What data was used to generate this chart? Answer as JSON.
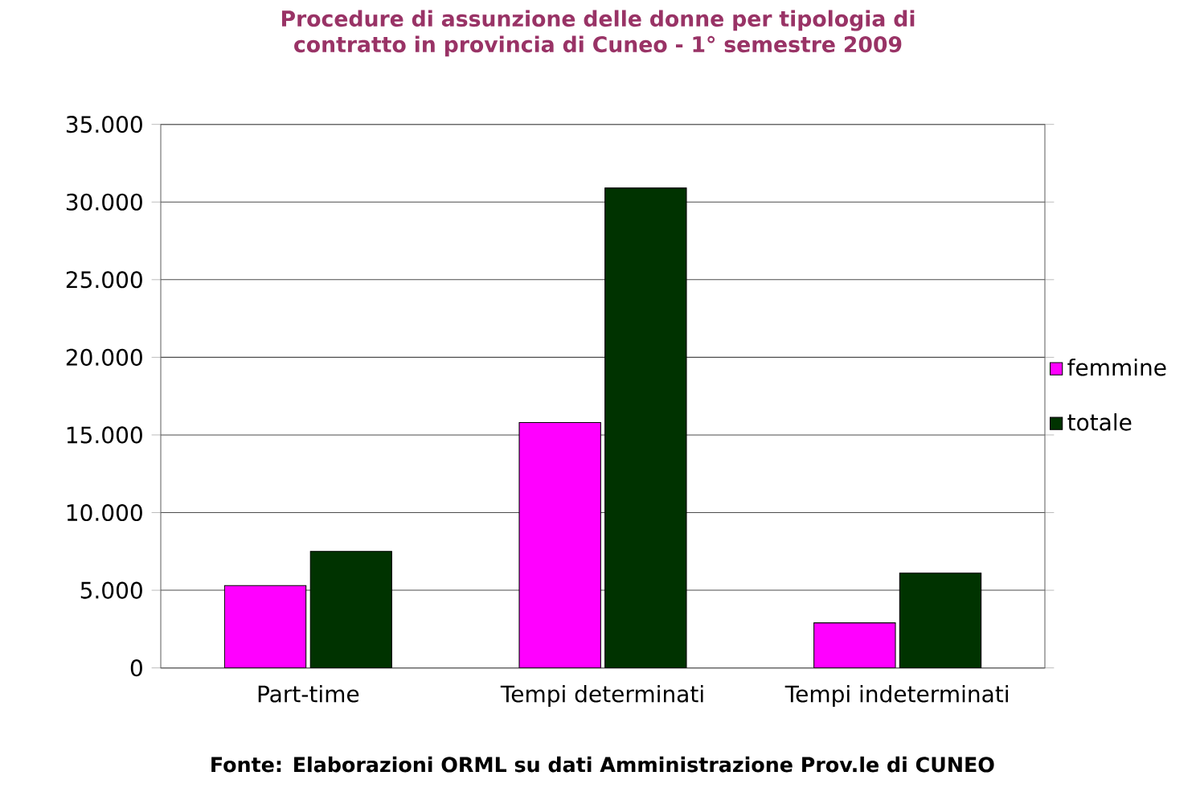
{
  "chart_data": {
    "type": "bar",
    "title": "Procedure di assunzione delle donne per tipologia di contratto in provincia di Cuneo - 1° semestre 2009",
    "categories": [
      "Part-time",
      "Tempi determinati",
      "Tempi indeterminati"
    ],
    "series": [
      {
        "name": "femmine",
        "color": "#ff00ff",
        "values": [
          5300,
          15800,
          2900
        ]
      },
      {
        "name": "totale",
        "color": "#003300",
        "values": [
          7500,
          30900,
          6100
        ]
      }
    ],
    "ylim": [
      0,
      35000
    ],
    "yticks": [
      {
        "value": 0,
        "label": "0"
      },
      {
        "value": 5000,
        "label": "5.000"
      },
      {
        "value": 10000,
        "label": "10.000"
      },
      {
        "value": 15000,
        "label": "15.000"
      },
      {
        "value": 20000,
        "label": "20.000"
      },
      {
        "value": 25000,
        "label": "25.000"
      },
      {
        "value": 30000,
        "label": "30.000"
      },
      {
        "value": 35000,
        "label": "35.000"
      }
    ],
    "grid": "y",
    "legend": "right",
    "annotations": [
      "Fonte: Elaborazioni ORML su dati Amministrazione Prov.le di CUNEO"
    ]
  }
}
